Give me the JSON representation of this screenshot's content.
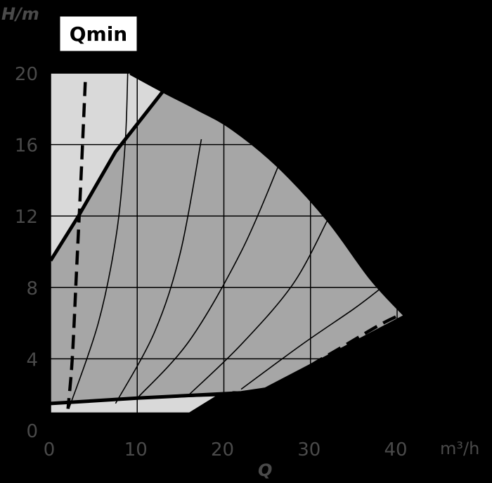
{
  "chart_data": {
    "type": "area",
    "xlabel": "Q",
    "xunit": "m³/h",
    "ylabel": "H/m",
    "xlim": [
      0,
      42
    ],
    "ylim": [
      0,
      20
    ],
    "xticks": [
      "0",
      "10",
      "20",
      "30",
      "40"
    ],
    "yticks": [
      "0",
      "4",
      "8",
      "12",
      "16",
      "20"
    ],
    "grid": true,
    "annotation": "Qmin",
    "colors": {
      "background": "#000000",
      "light_region": "#d9d9d9",
      "dark_region": "#a6a6a6",
      "lines": "#000000"
    },
    "series": [
      {
        "role": "max-curve",
        "points": [
          [
            9.2,
            20
          ],
          [
            13,
            19
          ],
          [
            17,
            18
          ],
          [
            21,
            16.9
          ],
          [
            26.3,
            14.8
          ],
          [
            32,
            11.8
          ],
          [
            37,
            8.5
          ],
          [
            41,
            6.4
          ]
        ]
      },
      {
        "role": "lower-limit",
        "points": [
          [
            0,
            1.5
          ],
          [
            10,
            1.8
          ],
          [
            22,
            2.1
          ],
          [
            24.8,
            2.3
          ],
          [
            41,
            6.4
          ]
        ]
      },
      {
        "role": "upper-limit",
        "points": [
          [
            0,
            9.5
          ],
          [
            3.1,
            11.9
          ],
          [
            7.5,
            15.6
          ],
          [
            13,
            19.0
          ]
        ]
      },
      {
        "role": "qmin-line",
        "points": [
          [
            4,
            19.5
          ],
          [
            3.5,
            14
          ],
          [
            3,
            9
          ],
          [
            2.5,
            4
          ],
          [
            2,
            1.2
          ]
        ]
      },
      {
        "role": "qmax-dashed",
        "points": [
          [
            21,
            2.1
          ],
          [
            25,
            2.3
          ],
          [
            32,
            4.2
          ],
          [
            38,
            5.9
          ],
          [
            41,
            6.6
          ]
        ]
      },
      {
        "role": "speed-curve",
        "points": [
          [
            2.1,
            1.2
          ],
          [
            5.5,
            6
          ],
          [
            7.6,
            11
          ],
          [
            8.6,
            16
          ],
          [
            8.9,
            20
          ]
        ]
      },
      {
        "role": "speed-curve",
        "points": [
          [
            7.5,
            1.5
          ],
          [
            12,
            5.5
          ],
          [
            15,
            10
          ],
          [
            17.4,
            16.3
          ]
        ]
      },
      {
        "role": "speed-curve",
        "points": [
          [
            10,
            1.8
          ],
          [
            16,
            5
          ],
          [
            22,
            10
          ],
          [
            26.3,
            14.8
          ]
        ]
      },
      {
        "role": "speed-curve",
        "points": [
          [
            16,
            2
          ],
          [
            22,
            4.8
          ],
          [
            28,
            8.2
          ],
          [
            32,
            11.8
          ]
        ]
      },
      {
        "role": "speed-curve",
        "points": [
          [
            22,
            2.3
          ],
          [
            29,
            4.8
          ],
          [
            35,
            6.8
          ],
          [
            38,
            7.9
          ]
        ]
      }
    ],
    "qmin_region": {
      "light_polygon": [
        [
          0,
          20
        ],
        [
          9.2,
          20
        ],
        [
          13,
          19
        ],
        [
          7.5,
          15.6
        ],
        [
          0,
          9.5
        ]
      ]
    },
    "bottom_band": {
      "light_polygon": [
        [
          0,
          1.0
        ],
        [
          16,
          1.0
        ],
        [
          19,
          1.9
        ],
        [
          0,
          1.6
        ]
      ]
    }
  }
}
